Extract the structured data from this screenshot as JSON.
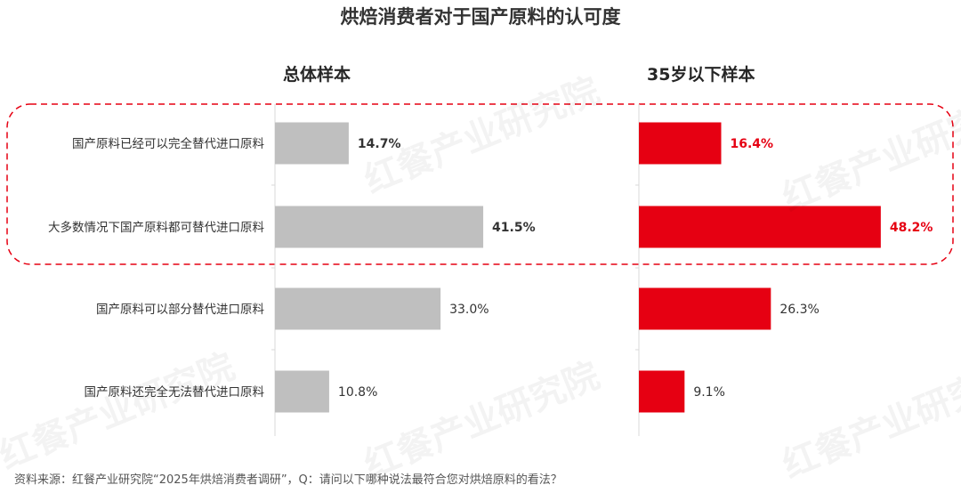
{
  "title": "烘焙消费者对于国产原料的认可度",
  "watermark": "红餐产业研究院",
  "source": "资料来源：红餐产业研究院“2025年烘焙消费者调研”，Q：请问以下哪种说法最符合您对烘焙原料的看法？",
  "colors": {
    "overall": "#bfbfbf",
    "young": "#e60012",
    "highlight_border": "#e60012"
  },
  "chart_data": [
    {
      "type": "bar",
      "orientation": "horizontal",
      "title": "总体样本",
      "categories": [
        "国产原料已经可以完全替代进口原料",
        "大多数情况下国产原料都可替代进口原料",
        "国产原料可以部分替代进口原料",
        "国产原料还完全无法替代进口原料"
      ],
      "values": [
        14.7,
        41.5,
        33.0,
        10.8
      ],
      "labels": [
        "14.7%",
        "41.5%",
        "33.0%",
        "10.8%"
      ],
      "xlim": [
        0,
        50
      ],
      "color": "#bfbfbf"
    },
    {
      "type": "bar",
      "orientation": "horizontal",
      "title": "35岁以下样本",
      "categories": [
        "国产原料已经可以完全替代进口原料",
        "大多数情况下国产原料都可替代进口原料",
        "国产原料可以部分替代进口原料",
        "国产原料还完全无法替代进口原料"
      ],
      "values": [
        16.4,
        48.2,
        26.3,
        9.1
      ],
      "labels": [
        "16.4%",
        "48.2%",
        "26.3%",
        "9.1%"
      ],
      "xlim": [
        0,
        50
      ],
      "color": "#e60012",
      "highlighted_categories": [
        0,
        1
      ]
    }
  ]
}
